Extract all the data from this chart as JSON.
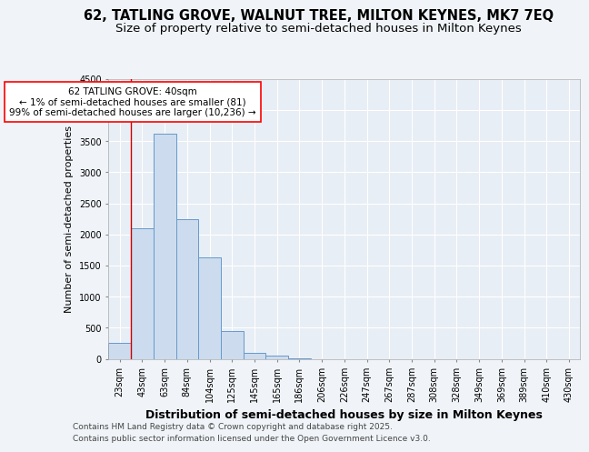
{
  "title": "62, TATLING GROVE, WALNUT TREE, MILTON KEYNES, MK7 7EQ",
  "subtitle": "Size of property relative to semi-detached houses in Milton Keynes",
  "xlabel": "Distribution of semi-detached houses by size in Milton Keynes",
  "ylabel": "Number of semi-detached properties",
  "categories": [
    "23sqm",
    "43sqm",
    "63sqm",
    "84sqm",
    "104sqm",
    "125sqm",
    "145sqm",
    "165sqm",
    "186sqm",
    "206sqm",
    "226sqm",
    "247sqm",
    "267sqm",
    "287sqm",
    "308sqm",
    "328sqm",
    "349sqm",
    "369sqm",
    "389sqm",
    "410sqm",
    "430sqm"
  ],
  "values": [
    250,
    2100,
    3620,
    2250,
    1630,
    450,
    100,
    55,
    5,
    0,
    0,
    0,
    0,
    0,
    0,
    0,
    0,
    0,
    0,
    0,
    0
  ],
  "bar_color": "#ccdcee",
  "bar_edge_color": "#6699cc",
  "highlight_line_color": "#cc0000",
  "annotation_title": "62 TATLING GROVE: 40sqm",
  "annotation_line1": "← 1% of semi-detached houses are smaller (81)",
  "annotation_line2": "99% of semi-detached houses are larger (10,236) →",
  "ylim": [
    0,
    4500
  ],
  "yticks": [
    0,
    500,
    1000,
    1500,
    2000,
    2500,
    3000,
    3500,
    4000,
    4500
  ],
  "bg_color": "#f0f4f8",
  "plot_bg_color": "#e8eef5",
  "grid_color": "#ffffff",
  "footer_line1": "Contains HM Land Registry data © Crown copyright and database right 2025.",
  "footer_line2": "Contains public sector information licensed under the Open Government Licence v3.0.",
  "title_fontsize": 10.5,
  "subtitle_fontsize": 9.5,
  "xlabel_fontsize": 9,
  "ylabel_fontsize": 8,
  "tick_fontsize": 7,
  "annotation_fontsize": 7.5,
  "footer_fontsize": 6.5
}
